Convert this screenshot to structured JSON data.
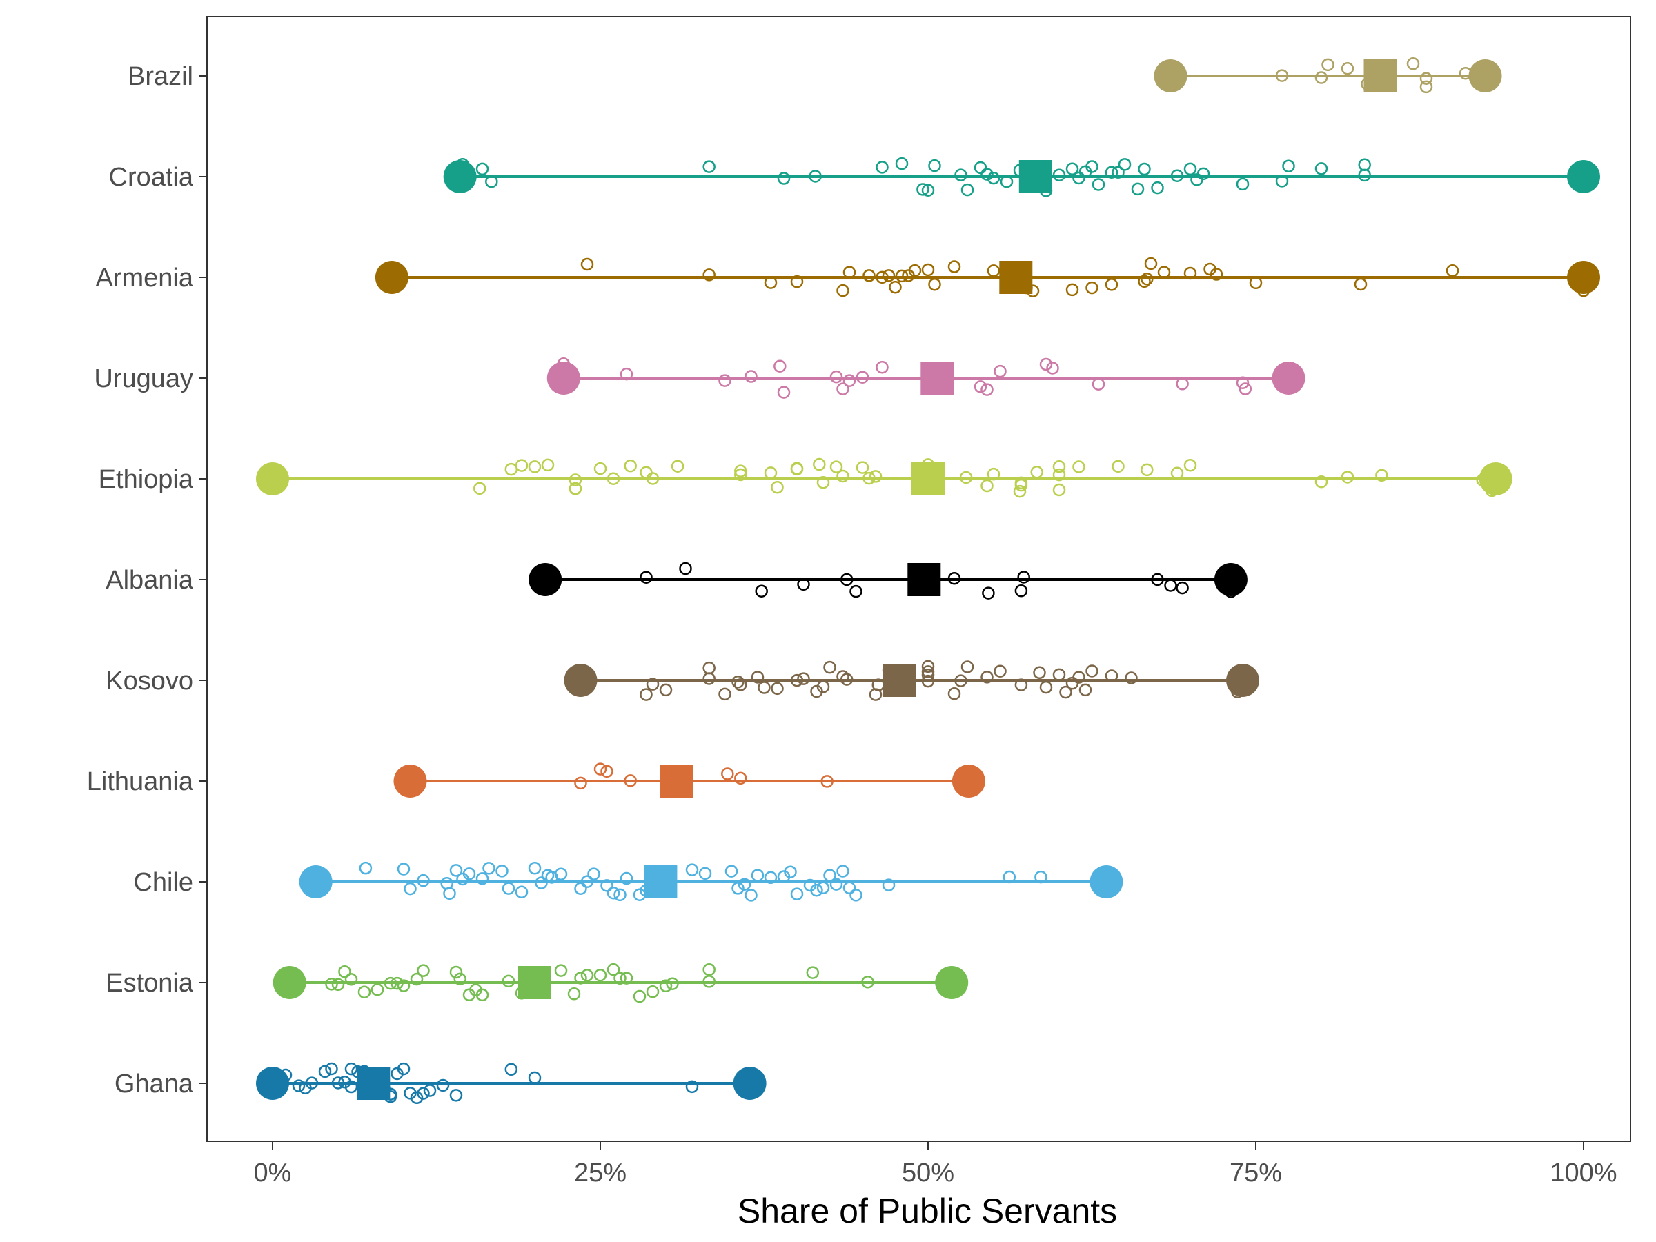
{
  "chart_data": {
    "type": "dot-range",
    "xlabel": "Share of Public Servants",
    "ylabel": "",
    "title": "",
    "xlim": [
      -0.05,
      1.035
    ],
    "x_ticks": [
      0,
      0.25,
      0.5,
      0.75,
      1.0
    ],
    "x_tick_labels": [
      "0%",
      "25%",
      "50%",
      "75%",
      "100%"
    ],
    "grid": false,
    "legend": "none",
    "categories": [
      "Brazil",
      "Croatia",
      "Armenia",
      "Uruguay",
      "Ethiopia",
      "Albania",
      "Kosovo",
      "Lithuania",
      "Chile",
      "Estonia",
      "Ghana"
    ],
    "series": [
      {
        "name": "Brazil",
        "color": "#ADA164",
        "min": 0.685,
        "max": 0.925,
        "mean": 0.845,
        "points": [
          0.77,
          0.8,
          0.805,
          0.82,
          0.84,
          0.85,
          0.87,
          0.88,
          0.88,
          0.91,
          0.92,
          0.835
        ]
      },
      {
        "name": "Croatia",
        "color": "#16A08A",
        "min": 0.143,
        "max": 1.0,
        "mean": 0.582,
        "points": [
          0.143,
          0.145,
          0.15,
          0.16,
          0.167,
          0.333,
          0.39,
          0.414,
          0.465,
          0.48,
          0.496,
          0.5,
          0.505,
          0.525,
          0.53,
          0.54,
          0.545,
          0.55,
          0.56,
          0.57,
          0.58,
          0.59,
          0.6,
          0.61,
          0.615,
          0.62,
          0.625,
          0.63,
          0.64,
          0.645,
          0.65,
          0.66,
          0.665,
          0.675,
          0.69,
          0.7,
          0.705,
          0.71,
          0.74,
          0.77,
          0.775,
          0.8,
          0.833,
          0.833
        ]
      },
      {
        "name": "Armenia",
        "color": "#9C6C02",
        "min": 0.091,
        "max": 1.0,
        "mean": 0.567,
        "points": [
          0.24,
          0.333,
          0.38,
          0.4,
          0.435,
          0.44,
          0.455,
          0.465,
          0.47,
          0.475,
          0.48,
          0.485,
          0.49,
          0.5,
          0.505,
          0.52,
          0.55,
          0.56,
          0.575,
          0.58,
          0.61,
          0.625,
          0.64,
          0.665,
          0.667,
          0.67,
          0.68,
          0.7,
          0.715,
          0.72,
          0.75,
          0.83,
          0.9,
          1.0
        ]
      },
      {
        "name": "Uruguay",
        "color": "#CC79A7",
        "min": 0.222,
        "max": 0.775,
        "mean": 0.507,
        "points": [
          0.222,
          0.27,
          0.345,
          0.365,
          0.387,
          0.39,
          0.43,
          0.435,
          0.44,
          0.45,
          0.465,
          0.54,
          0.545,
          0.555,
          0.59,
          0.595,
          0.63,
          0.694,
          0.74,
          0.742,
          0.775
        ]
      },
      {
        "name": "Ethiopia",
        "color": "#BBCF4F",
        "min": 0.0,
        "max": 0.933,
        "mean": 0.5,
        "points": [
          0.158,
          0.182,
          0.19,
          0.2,
          0.21,
          0.231,
          0.231,
          0.231,
          0.25,
          0.26,
          0.273,
          0.285,
          0.29,
          0.309,
          0.357,
          0.357,
          0.38,
          0.385,
          0.4,
          0.4,
          0.417,
          0.42,
          0.43,
          0.435,
          0.45,
          0.455,
          0.46,
          0.5,
          0.5,
          0.529,
          0.545,
          0.55,
          0.57,
          0.571,
          0.571,
          0.583,
          0.6,
          0.6,
          0.6,
          0.615,
          0.645,
          0.667,
          0.69,
          0.7,
          0.8,
          0.82,
          0.846,
          0.923,
          0.93
        ]
      },
      {
        "name": "Albania",
        "color": "#000000",
        "min": 0.208,
        "max": 0.731,
        "mean": 0.497,
        "points": [
          0.208,
          0.285,
          0.315,
          0.373,
          0.405,
          0.438,
          0.445,
          0.495,
          0.52,
          0.546,
          0.571,
          0.573,
          0.675,
          0.685,
          0.694,
          0.731
        ]
      },
      {
        "name": "Kosovo",
        "color": "#7B6649",
        "min": 0.235,
        "max": 0.74,
        "mean": 0.478,
        "points": [
          0.24,
          0.285,
          0.29,
          0.3,
          0.333,
          0.333,
          0.345,
          0.355,
          0.357,
          0.37,
          0.375,
          0.385,
          0.4,
          0.405,
          0.415,
          0.42,
          0.425,
          0.435,
          0.438,
          0.46,
          0.462,
          0.47,
          0.475,
          0.48,
          0.5,
          0.5,
          0.5,
          0.5,
          0.52,
          0.525,
          0.53,
          0.545,
          0.555,
          0.571,
          0.585,
          0.59,
          0.6,
          0.605,
          0.61,
          0.615,
          0.62,
          0.625,
          0.64,
          0.655,
          0.736
        ]
      },
      {
        "name": "Lithuania",
        "color": "#D86D37",
        "min": 0.105,
        "max": 0.531,
        "mean": 0.308,
        "points": [
          0.235,
          0.25,
          0.255,
          0.273,
          0.347,
          0.357,
          0.423,
          0.531
        ]
      },
      {
        "name": "Chile",
        "color": "#4FB1DF",
        "min": 0.033,
        "max": 0.636,
        "mean": 0.296,
        "points": [
          0.071,
          0.1,
          0.105,
          0.115,
          0.133,
          0.135,
          0.14,
          0.145,
          0.15,
          0.16,
          0.165,
          0.175,
          0.18,
          0.19,
          0.2,
          0.205,
          0.21,
          0.213,
          0.22,
          0.235,
          0.24,
          0.245,
          0.255,
          0.26,
          0.265,
          0.27,
          0.28,
          0.285,
          0.3,
          0.32,
          0.33,
          0.35,
          0.355,
          0.36,
          0.365,
          0.37,
          0.38,
          0.39,
          0.395,
          0.4,
          0.41,
          0.415,
          0.42,
          0.425,
          0.43,
          0.435,
          0.44,
          0.445,
          0.47,
          0.562,
          0.586
        ]
      },
      {
        "name": "Estonia",
        "color": "#75BD51",
        "min": 0.013,
        "max": 0.518,
        "mean": 0.2,
        "points": [
          0.045,
          0.05,
          0.055,
          0.06,
          0.07,
          0.08,
          0.09,
          0.095,
          0.1,
          0.11,
          0.115,
          0.14,
          0.143,
          0.15,
          0.155,
          0.16,
          0.18,
          0.19,
          0.2,
          0.22,
          0.23,
          0.235,
          0.24,
          0.25,
          0.26,
          0.265,
          0.27,
          0.28,
          0.29,
          0.3,
          0.305,
          0.333,
          0.333,
          0.412,
          0.454,
          0.518
        ]
      },
      {
        "name": "Ghana",
        "color": "#1679A8",
        "min": 0.0,
        "max": 0.364,
        "mean": 0.077,
        "points": [
          0.0,
          0.0,
          0.005,
          0.01,
          0.02,
          0.025,
          0.03,
          0.04,
          0.045,
          0.05,
          0.055,
          0.06,
          0.06,
          0.065,
          0.07,
          0.075,
          0.08,
          0.085,
          0.09,
          0.09,
          0.095,
          0.1,
          0.105,
          0.11,
          0.115,
          0.12,
          0.13,
          0.14,
          0.182,
          0.2,
          0.32
        ]
      }
    ]
  }
}
